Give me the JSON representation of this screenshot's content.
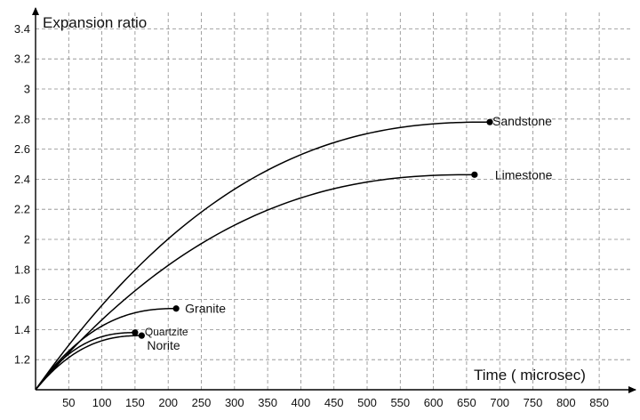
{
  "chart_data": {
    "type": "line",
    "title": "",
    "ylabel": "Expansion ratio",
    "xlabel": "Time (  microsec)",
    "xlim": [
      0,
      900
    ],
    "ylim": [
      1.0,
      3.4
    ],
    "x_ticks": [
      50,
      100,
      150,
      200,
      250,
      300,
      350,
      400,
      450,
      500,
      550,
      600,
      650,
      700,
      750,
      800,
      850
    ],
    "y_ticks": [
      1.2,
      1.4,
      1.6,
      1.8,
      2,
      2.2,
      2.4,
      2.6,
      2.8,
      3,
      3.2,
      3.4
    ],
    "x_tick_labels": [
      "50",
      "100",
      "150",
      "200",
      "250",
      "300",
      "350",
      "400",
      "450",
      "500",
      "550",
      "600",
      "650",
      "700",
      "750",
      "800",
      "850"
    ],
    "y_tick_labels": [
      "1.2",
      "1.4",
      "1.6",
      "1.8",
      "2",
      "2.2",
      "2.4",
      "2.6",
      "2.8",
      "3",
      "3.2",
      "3.4"
    ],
    "grid": true,
    "series": [
      {
        "name": "Sandstone",
        "end_x": 685,
        "end_y": 2.78,
        "label_position": "right"
      },
      {
        "name": "Limestone",
        "end_x": 662,
        "end_y": 2.43,
        "label_position": "right"
      },
      {
        "name": "Granite",
        "end_x": 212,
        "end_y": 1.54,
        "label_position": "right"
      },
      {
        "name": "Quartzite",
        "end_x": 150,
        "end_y": 1.38,
        "label_position": "right"
      },
      {
        "name": "Norite",
        "end_x": 160,
        "end_y": 1.36,
        "label_position": "below-right"
      }
    ]
  }
}
